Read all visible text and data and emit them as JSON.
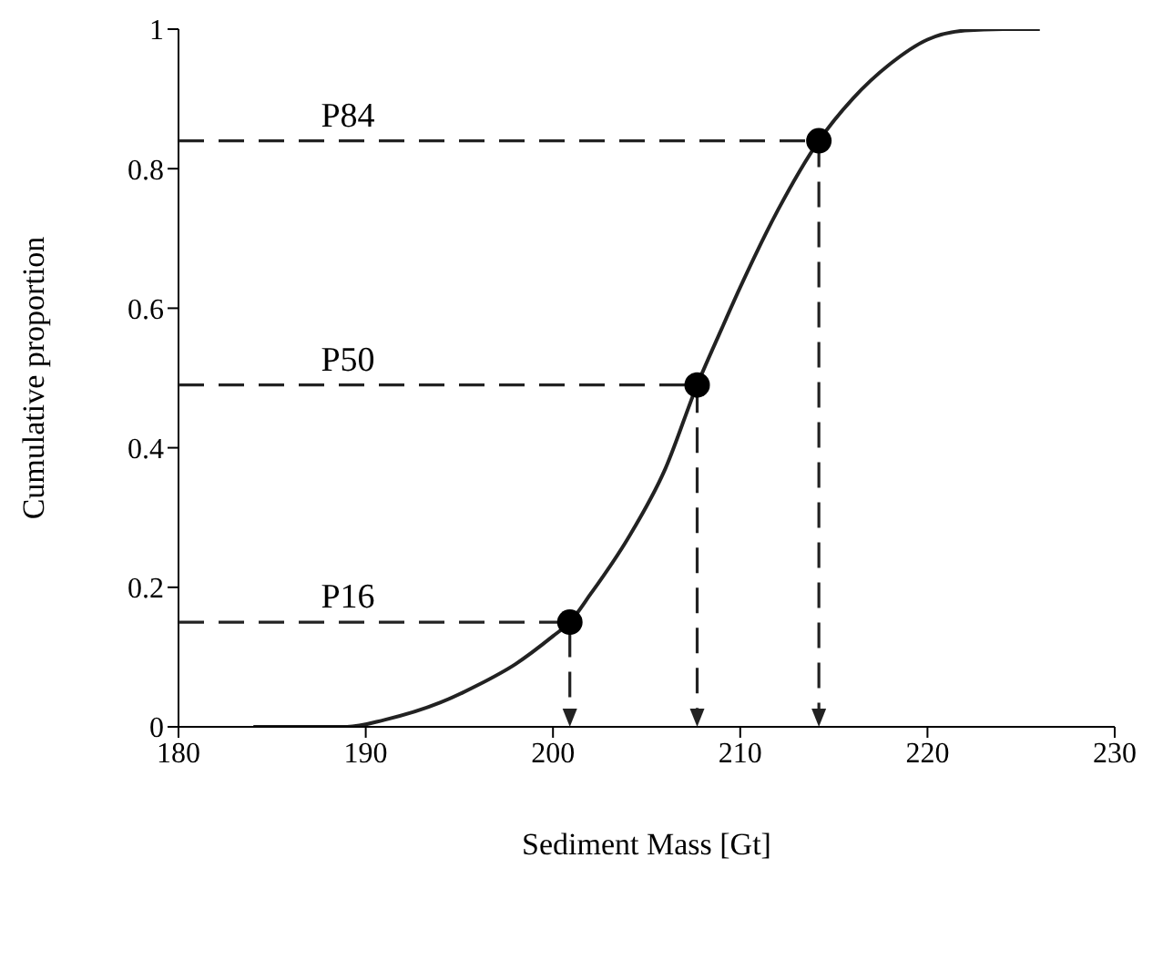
{
  "chart_data": {
    "type": "line",
    "xlabel": "Sediment Mass [Gt]",
    "ylabel": "Cumulative proportion",
    "xlim": [
      180,
      230
    ],
    "xticks": [
      180,
      190,
      200,
      210,
      220,
      230
    ],
    "ylim": [
      0,
      1
    ],
    "yticks": [
      0,
      0.2,
      0.4,
      0.6,
      0.8,
      1
    ],
    "series": [
      {
        "color": "#222222",
        "x": [
          184,
          189,
          191,
          194,
          196,
          198,
          200,
          200.9,
          202,
          204,
          206,
          207.7,
          209,
          210,
          212,
          214.2,
          216,
          218,
          220,
          222,
          224,
          226
        ],
        "values": [
          0,
          0,
          0.01,
          0.035,
          0.06,
          0.09,
          0.13,
          0.15,
          0.19,
          0.27,
          0.37,
          0.49,
          0.57,
          0.63,
          0.74,
          0.84,
          0.9,
          0.95,
          0.985,
          0.998,
          1,
          1
        ]
      },
      {
        "type": "scatter",
        "color": "#000000",
        "marker": "circle",
        "x": [
          200.9,
          207.7,
          214.2
        ],
        "values": [
          0.15,
          0.49,
          0.84
        ]
      }
    ],
    "annotations": [
      "P16",
      "P50",
      "P84"
    ]
  }
}
